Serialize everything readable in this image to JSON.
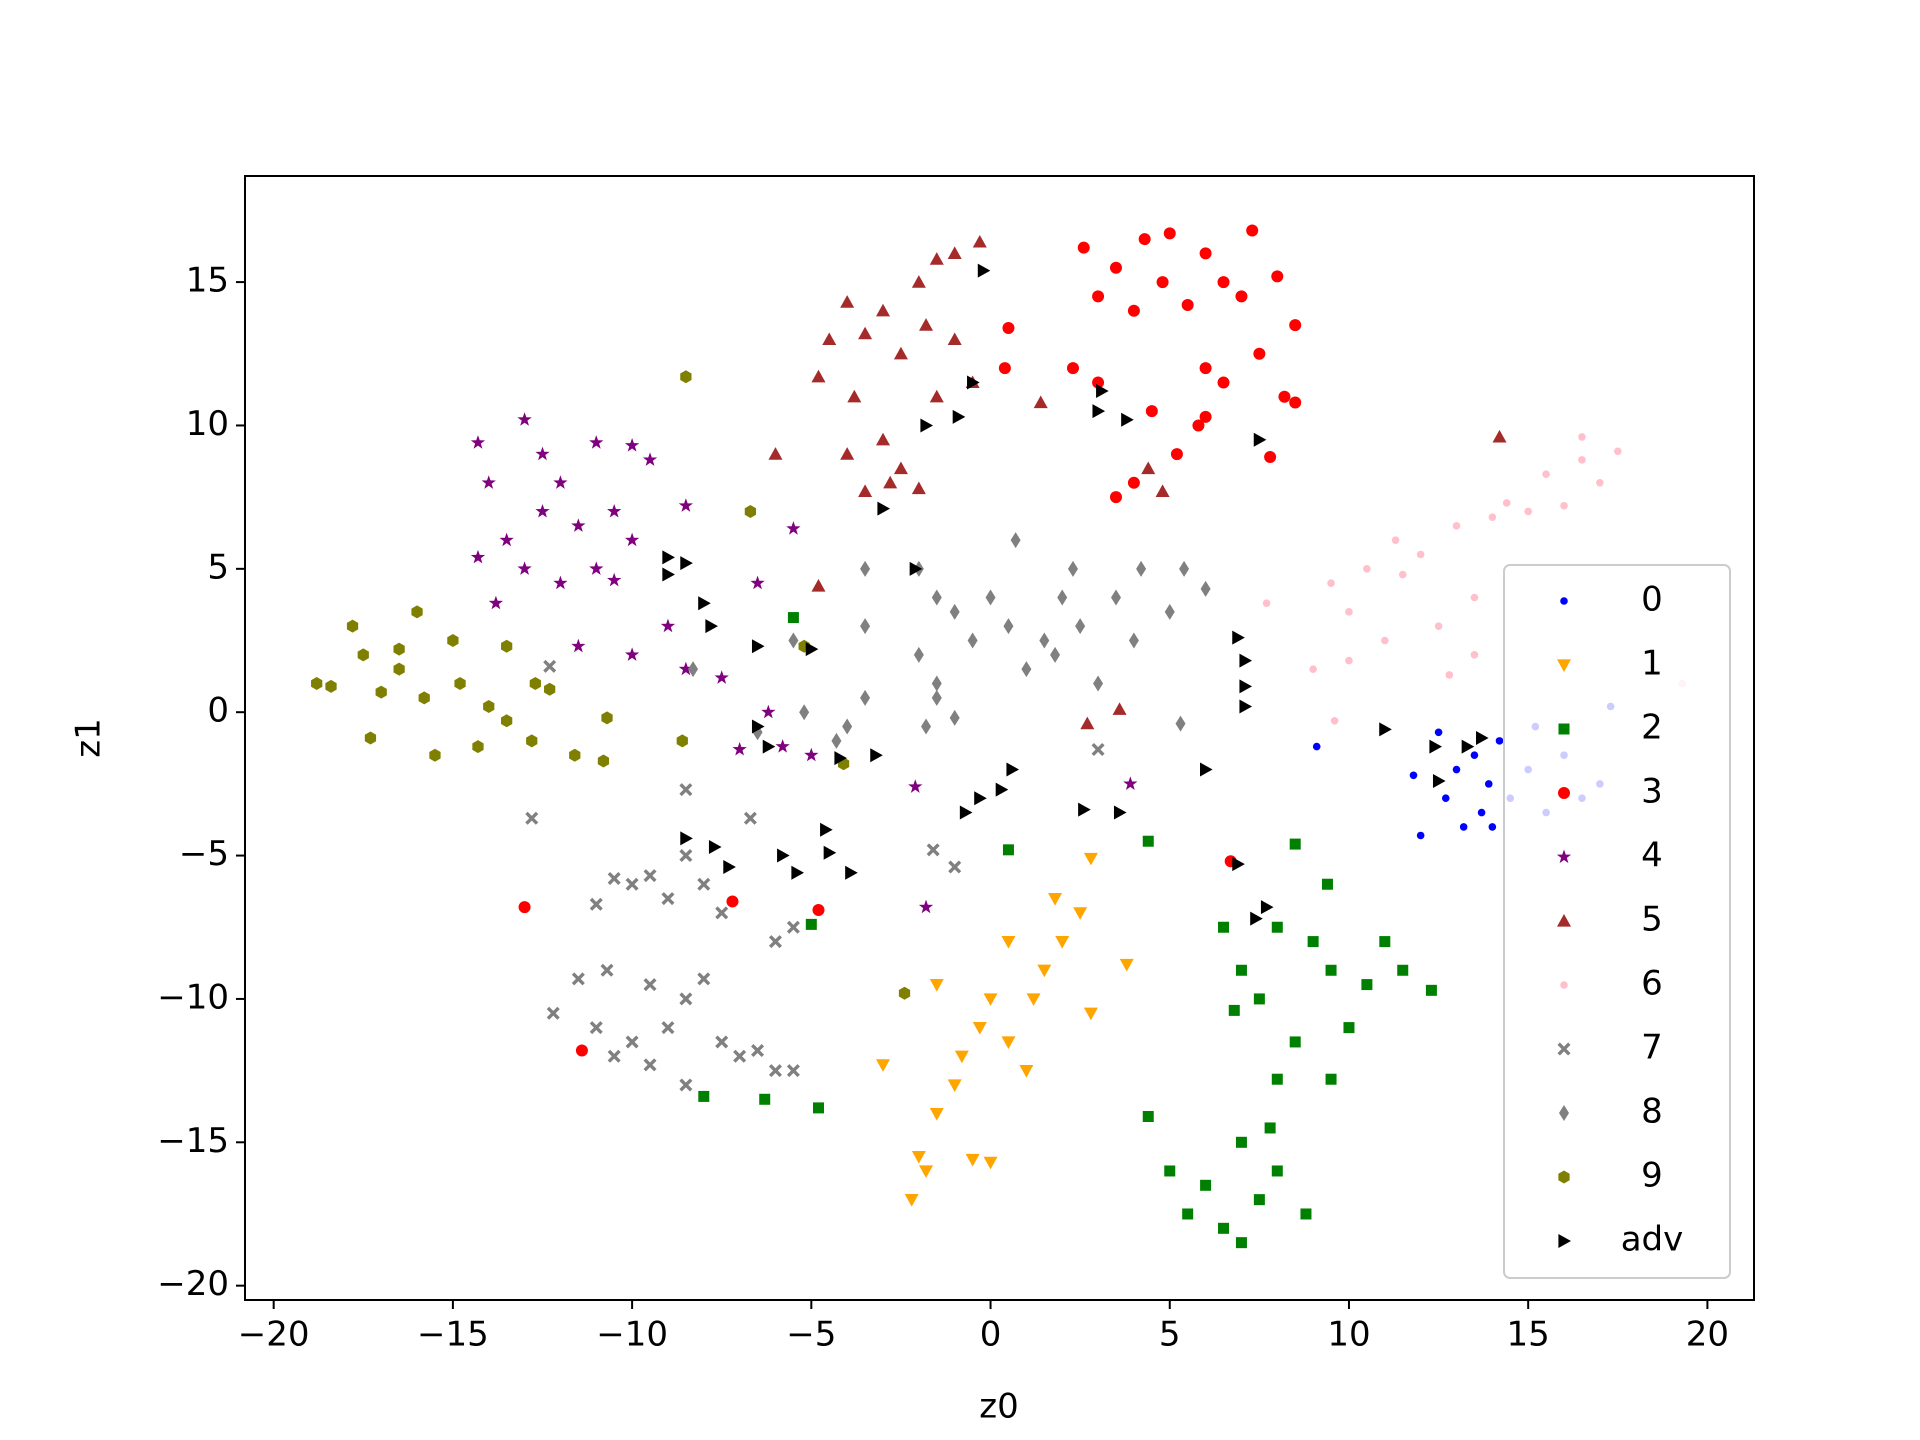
{
  "chart_data": {
    "type": "scatter",
    "x_label": "z0",
    "y_label": "z1",
    "xlim": [
      -20.8,
      21.3
    ],
    "ylim": [
      -20.5,
      18.7
    ],
    "xticks": [
      {
        "value": -20,
        "label": "−20"
      },
      {
        "value": -15,
        "label": "−15"
      },
      {
        "value": -10,
        "label": "−10"
      },
      {
        "value": -5,
        "label": "−5"
      },
      0,
      5,
      10,
      15,
      20
    ],
    "yticks": [
      {
        "value": -20,
        "label": "−20"
      },
      {
        "value": -15,
        "label": "−15"
      },
      {
        "value": -10,
        "label": "−10"
      },
      {
        "value": -5,
        "label": "−5"
      },
      0,
      5,
      10,
      15
    ],
    "legend": "lower right",
    "series": [
      {
        "name": "0",
        "color": "#0000ff",
        "marker": ".",
        "x": [
          9.1,
          11.8,
          12,
          12.5,
          12.7,
          13,
          13.2,
          13.5,
          13.7,
          13.9,
          14,
          14.2,
          14.5,
          15,
          15.5,
          16,
          16.5,
          17,
          17.3,
          15.2
        ],
        "values": [
          -1.2,
          -2.2,
          -4.3,
          -0.7,
          -3,
          -2,
          -4,
          -1.5,
          -3.5,
          -2.5,
          -4,
          -1,
          -3,
          -2,
          -3.5,
          -1.5,
          -3,
          -2.5,
          0.2,
          -0.5
        ]
      },
      {
        "name": "1",
        "color": "#ffa500",
        "marker": "v",
        "x": [
          -2.2,
          -1.8,
          -2,
          -1.5,
          -1,
          -0.5,
          0,
          -0.8,
          -0.3,
          0,
          0.5,
          1,
          1.5,
          2,
          2.5,
          1.8,
          0.5,
          2.8,
          3.8,
          -3,
          2.8,
          -1.5,
          1.2
        ],
        "values": [
          -17,
          -16,
          -15.5,
          -14,
          -13,
          -15.6,
          -15.7,
          -12,
          -11,
          -10,
          -11.5,
          -12.5,
          -9,
          -8,
          -7,
          -6.5,
          -8,
          -10.5,
          -8.8,
          -12.3,
          -5.1,
          -9.5,
          -10
        ]
      },
      {
        "name": "2",
        "color": "#008000",
        "marker": "s",
        "x": [
          6.5,
          7,
          7.5,
          8,
          8.5,
          9,
          9.5,
          9.5,
          10,
          10.5,
          11,
          11.5,
          12.3,
          8.5,
          8,
          6.8,
          9.4,
          4.4,
          5,
          5.5,
          6,
          6.5,
          7,
          7,
          7.8,
          8,
          8.8,
          7.5,
          -5.5,
          0.5,
          4.4,
          -5,
          -8,
          -6.3,
          -4.8
        ],
        "values": [
          -7.5,
          -9,
          -10,
          -7.5,
          -4.6,
          -8,
          -9,
          -12.8,
          -11,
          -9.5,
          -8,
          -9,
          -9.7,
          -11.5,
          -12.8,
          -10.4,
          -6,
          -14.1,
          -16,
          -17.5,
          -16.5,
          -18,
          -18.5,
          -15,
          -14.5,
          -16,
          -17.5,
          -17,
          3.3,
          -4.8,
          -4.5,
          -7.4,
          -13.4,
          -13.5,
          -13.8
        ]
      },
      {
        "name": "3",
        "color": "#ff0000",
        "marker": "o",
        "x": [
          2.6,
          3,
          3.5,
          4,
          4.3,
          4.8,
          5,
          5.5,
          6,
          6.5,
          7,
          7.3,
          8,
          8.5,
          8.2,
          7.5,
          6.5,
          6,
          5.8,
          5.2,
          4,
          3.5,
          2.3,
          3,
          4.5,
          7.8,
          0.4,
          0.5,
          8.5,
          6,
          -13,
          -7.2,
          -4.8,
          -11.4,
          6.7
        ],
        "values": [
          16.2,
          14.5,
          15.5,
          14,
          16.5,
          15,
          16.7,
          14.2,
          16,
          15,
          14.5,
          16.8,
          15.2,
          13.5,
          11,
          12.5,
          11.5,
          12,
          10,
          9,
          8,
          7.5,
          12,
          11.5,
          10.5,
          8.9,
          12,
          13.4,
          10.8,
          10.3,
          -6.8,
          -6.6,
          -6.9,
          -11.8,
          -5.2
        ]
      },
      {
        "name": "4",
        "color": "#800080",
        "marker": "*",
        "x": [
          -14.3,
          -13,
          -12.5,
          -12,
          -11,
          -10,
          -9.5,
          -14,
          -13.5,
          -12.5,
          -11.5,
          -10.5,
          -10,
          -14.3,
          -13,
          -12,
          -11,
          -10.5,
          -13.8,
          -11.5,
          -10,
          -9,
          -8.5,
          -8.5,
          -7.5,
          -6.5,
          -5.5,
          -6.2,
          -7,
          -5,
          -2.1,
          -1.8,
          -5.8,
          3.9
        ],
        "values": [
          9.4,
          10.2,
          9,
          8,
          9.4,
          9.3,
          8.8,
          8,
          6,
          7,
          6.5,
          7,
          6,
          5.4,
          5,
          4.5,
          5,
          4.6,
          3.8,
          2.3,
          2,
          3,
          7.2,
          1.5,
          1.2,
          4.5,
          6.4,
          0,
          -1.3,
          -1.5,
          -2.6,
          -6.8,
          -1.2,
          -2.5
        ]
      },
      {
        "name": "5",
        "color": "#a52a2a",
        "marker": "^",
        "x": [
          -4.8,
          -4.5,
          -4,
          -3.5,
          -3,
          -2.5,
          -2,
          -1.5,
          -1,
          -0.3,
          -1.8,
          -1,
          -0.5,
          -3.8,
          -3,
          -4,
          -2.5,
          -3.5,
          -2.8,
          -2,
          -1.5,
          -6,
          -4.8,
          1.4,
          2.7,
          3.6,
          4.4,
          4.8,
          14.2
        ],
        "values": [
          11.7,
          13,
          14.3,
          13.2,
          14,
          12.5,
          15,
          15.8,
          16,
          16.4,
          13.5,
          13,
          11.5,
          11,
          9.5,
          9,
          8.5,
          7.7,
          8,
          7.8,
          11,
          9,
          4.4,
          10.8,
          -0.4,
          0.1,
          8.5,
          7.7,
          9.6
        ]
      },
      {
        "name": "6",
        "color": "#ffc0cb",
        "marker": ".",
        "x": [
          7.7,
          9,
          9.5,
          10,
          10.5,
          11,
          11.3,
          11.5,
          12,
          12.5,
          13,
          13.5,
          13.5,
          14,
          14.4,
          15,
          15.5,
          16,
          16.5,
          17,
          17.5,
          16.5,
          12.8,
          10,
          9.6,
          19.3
        ],
        "values": [
          3.8,
          1.5,
          4.5,
          3.5,
          5,
          2.5,
          6,
          4.8,
          5.5,
          3,
          6.5,
          4,
          2,
          6.8,
          7.3,
          7,
          8.3,
          7.2,
          8.8,
          8,
          9.1,
          9.6,
          1.3,
          1.8,
          -0.3,
          1
        ]
      },
      {
        "name": "7",
        "color": "#808080",
        "marker": "X",
        "x": [
          -12.8,
          -11,
          -10.5,
          -10,
          -9.5,
          -9,
          -8.5,
          -8,
          -7.5,
          -12.2,
          -11.5,
          -11,
          -10.5,
          -10,
          -9.5,
          -9,
          -8.5,
          -8,
          -7.5,
          -7,
          -6.5,
          -6,
          -5.5,
          -10.7,
          -9.5,
          -8.5,
          -6,
          -5.5,
          -8.5,
          -6.7,
          -1.6,
          -1,
          3,
          -12.3
        ],
        "values": [
          -3.7,
          -6.7,
          -5.8,
          -6,
          -5.7,
          -6.5,
          -5,
          -6,
          -7,
          -10.5,
          -9.3,
          -11,
          -12,
          -11.5,
          -12.3,
          -11,
          -10,
          -9.3,
          -11.5,
          -12,
          -11.8,
          -12.5,
          -12.5,
          -9,
          -9.5,
          -13,
          -8,
          -7.5,
          -2.7,
          -3.7,
          -4.8,
          -5.4,
          -1.3,
          1.6
        ]
      },
      {
        "name": "8",
        "color": "#808080",
        "marker": "d",
        "x": [
          -3.5,
          -3.5,
          -2,
          -1.5,
          -2,
          -1.5,
          -1,
          -0.5,
          0,
          0.7,
          0.5,
          1,
          1.5,
          2,
          2.3,
          2.5,
          3,
          3.5,
          4,
          4.2,
          5,
          5.4,
          6,
          1.8,
          -1.8,
          -1.5,
          -1,
          -5.2,
          -4.3,
          -4,
          -6.5,
          -3.5,
          -5.5,
          -8.3,
          5.3
        ],
        "values": [
          5,
          3,
          5,
          4,
          2,
          1,
          3.5,
          2.5,
          4,
          6,
          3,
          1.5,
          2.5,
          4,
          5,
          3,
          1,
          4,
          2.5,
          5,
          3.5,
          5,
          4.3,
          2,
          -0.5,
          0.5,
          -0.2,
          0,
          -1,
          -0.5,
          -0.7,
          0.5,
          2.5,
          1.5,
          -0.4
        ]
      },
      {
        "name": "9",
        "color": "#808000",
        "marker": "h",
        "x": [
          -18.8,
          -18.4,
          -17.8,
          -17.5,
          -17.3,
          -17,
          -16.5,
          -16,
          -15.8,
          -15.5,
          -15,
          -14.8,
          -14.3,
          -14,
          -13.5,
          -13.5,
          -12.8,
          -12.7,
          -12.3,
          -11.6,
          -10.8,
          -10.7,
          -8.5,
          -8.6,
          -6.7,
          -5.2,
          -4.1,
          -2.4,
          -16.5
        ],
        "values": [
          1,
          0.9,
          3,
          2,
          -0.9,
          0.7,
          1.5,
          3.5,
          0.5,
          -1.5,
          2.5,
          1,
          -1.2,
          0.2,
          2.3,
          -0.3,
          -1,
          1,
          0.8,
          -1.5,
          -1.7,
          -0.2,
          11.7,
          -1,
          7,
          2.3,
          -1.8,
          -9.8,
          2.2
        ]
      },
      {
        "name": "adv",
        "color": "#000000",
        "marker": ">",
        "x": [
          -0.2,
          -0.9,
          -1.8,
          -0.5,
          3.1,
          3.8,
          3,
          7.5,
          -3,
          -9,
          -8.5,
          -9,
          -8,
          -7.8,
          -2.1,
          -6.5,
          -5,
          -6.5,
          -6.2,
          -4.2,
          -3.2,
          -8.5,
          -7.7,
          -7.3,
          -5.8,
          -5.4,
          -4.5,
          -4.6,
          -3.9,
          -0.7,
          -0.3,
          0.3,
          0.6,
          2.6,
          3.6,
          6,
          6.9,
          7.1,
          7.1,
          7.1,
          6.9,
          7.4,
          7.7,
          11,
          12.4,
          12.5,
          13.3,
          13.7
        ],
        "values": [
          15.4,
          10.3,
          10,
          11.5,
          11.2,
          10.2,
          10.5,
          9.5,
          7.1,
          5.4,
          5.2,
          4.8,
          3.8,
          3,
          5,
          2.3,
          2.2,
          -0.5,
          -1.2,
          -1.6,
          -1.5,
          -4.4,
          -4.7,
          -5.4,
          -5,
          -5.6,
          -4.9,
          -4.1,
          -5.6,
          -3.5,
          -3,
          -2.7,
          -2,
          -3.4,
          -3.5,
          -2,
          2.6,
          1.8,
          0.9,
          0.2,
          -5.3,
          -7.2,
          -6.8,
          -0.6,
          -1.2,
          -2.4,
          -1.2,
          -0.9
        ]
      }
    ]
  }
}
